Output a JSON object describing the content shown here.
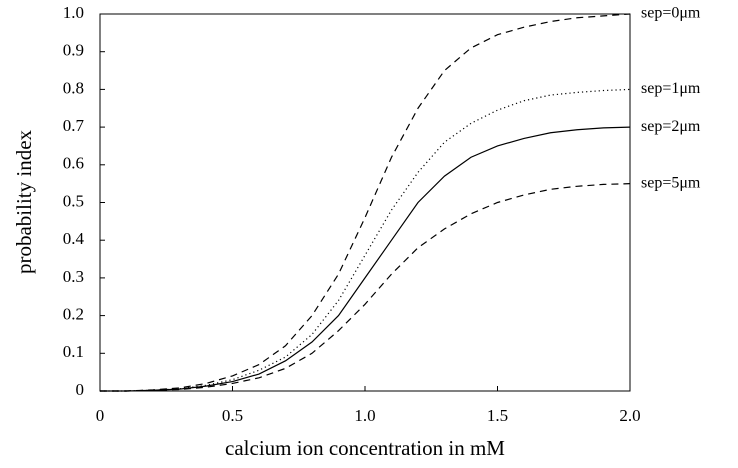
{
  "chart_data": {
    "type": "line",
    "x_label": "calcium ion concentration in mM",
    "y_label": "probability index",
    "x": [
      0,
      0.1,
      0.2,
      0.3,
      0.4,
      0.5,
      0.6,
      0.7,
      0.8,
      0.9,
      1.0,
      1.1,
      1.2,
      1.3,
      1.4,
      1.5,
      1.6,
      1.7,
      1.8,
      1.9,
      2.0
    ],
    "series": [
      {
        "name": "sep=0μm",
        "color": "#000000",
        "dash": "dashed",
        "values": [
          0,
          0,
          0.003,
          0.008,
          0.02,
          0.04,
          0.07,
          0.12,
          0.2,
          0.31,
          0.46,
          0.62,
          0.75,
          0.85,
          0.91,
          0.945,
          0.965,
          0.98,
          0.99,
          0.995,
          1.0
        ]
      },
      {
        "name": "sep=1μm",
        "color": "#000000",
        "dash": "dotted",
        "values": [
          0,
          0,
          0.002,
          0.006,
          0.015,
          0.03,
          0.055,
          0.09,
          0.15,
          0.24,
          0.36,
          0.48,
          0.58,
          0.66,
          0.71,
          0.745,
          0.77,
          0.785,
          0.792,
          0.797,
          0.8
        ]
      },
      {
        "name": "sep=2μm",
        "color": "#000000",
        "dash": "solid",
        "values": [
          0,
          0,
          0.002,
          0.005,
          0.013,
          0.025,
          0.045,
          0.08,
          0.13,
          0.2,
          0.3,
          0.4,
          0.5,
          0.57,
          0.62,
          0.65,
          0.67,
          0.685,
          0.693,
          0.698,
          0.7
        ]
      },
      {
        "name": "sep=5μm",
        "color": "#000000",
        "dash": "dashed",
        "values": [
          0,
          0,
          0.002,
          0.004,
          0.01,
          0.02,
          0.035,
          0.06,
          0.1,
          0.16,
          0.23,
          0.31,
          0.38,
          0.43,
          0.47,
          0.5,
          0.52,
          0.535,
          0.543,
          0.548,
          0.55
        ]
      }
    ],
    "xlim": [
      0,
      2
    ],
    "ylim": [
      0,
      1
    ],
    "xticks": [
      0,
      0.5,
      {
        "value": 1,
        "label": "1.0"
      },
      1.5,
      {
        "value": 2,
        "label": "2.0"
      }
    ],
    "yticks": [
      0,
      0.1,
      0.2,
      0.3,
      0.4,
      0.5,
      0.6,
      0.7,
      0.8,
      0.9,
      {
        "value": 1,
        "label": "1.0"
      }
    ],
    "grid": false
  }
}
